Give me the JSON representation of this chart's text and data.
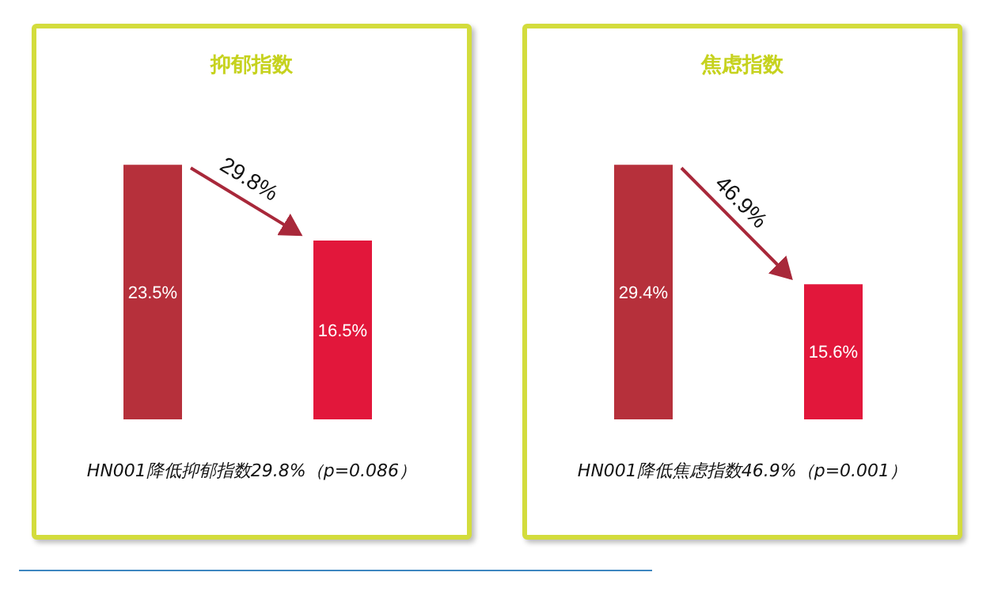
{
  "chart_data": [
    {
      "type": "bar",
      "title": "抑郁指数",
      "categories": [
        null,
        null
      ],
      "values": [
        23.5,
        16.5
      ],
      "colors": [
        "#b6303b",
        "#e2173b"
      ],
      "value_labels": [
        "23.5%",
        "16.5%"
      ],
      "annotations": [
        "29.8%",
        "HN001降低抑郁指数29.8%（p=0.086）"
      ]
    },
    {
      "type": "bar",
      "title": "焦虑指数",
      "categories": [
        null,
        null
      ],
      "values": [
        29.4,
        15.6
      ],
      "colors": [
        "#b6303b",
        "#e2173b"
      ],
      "value_labels": [
        "29.4%",
        "15.6%"
      ],
      "annotations": [
        "46.9%",
        "HN001降低焦虑指数46.9%（p=0.001）"
      ]
    }
  ]
}
